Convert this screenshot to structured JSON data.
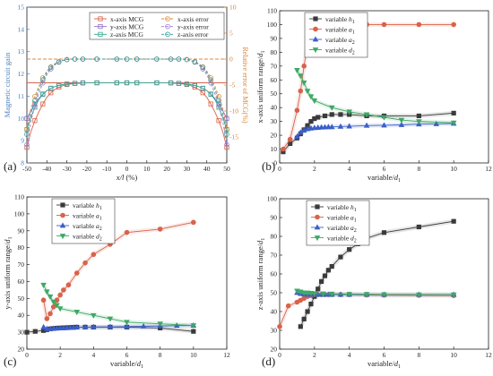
{
  "chart_data": [
    {
      "panel": "(a)",
      "type": "line",
      "xlabel": "x/l (%)",
      "ylabel": "Magnetic circuit gain",
      "y2label": "Relative error of MCG(%)",
      "xlim": [
        -50,
        50
      ],
      "ylim": [
        8,
        15
      ],
      "y2lim": [
        -20,
        10
      ],
      "xticks": [
        "-50",
        "-40",
        "-30",
        "-20",
        "-10",
        "0",
        "10",
        "20",
        "30",
        "40",
        "50"
      ],
      "yticks": [
        "8",
        "9",
        "10",
        "11",
        "12",
        "13",
        "14",
        "15"
      ],
      "y2ticks": [
        "-15",
        "-10",
        "-5",
        "0",
        "5",
        "10"
      ],
      "x": [
        -50,
        -48,
        -46,
        -44,
        -42,
        -40,
        -38,
        -36,
        -34,
        -32,
        -30,
        -28,
        -26,
        -24,
        -22,
        -20,
        -15,
        -10,
        -5,
        0,
        5,
        10,
        15,
        20,
        22,
        24,
        26,
        28,
        30,
        32,
        34,
        36,
        38,
        40,
        42,
        44,
        46,
        48,
        50
      ],
      "series": [
        {
          "name": "x-axis MCG",
          "axis": "left",
          "color": "#d9624a",
          "values": [
            8.7,
            9.4,
            9.9,
            10.3,
            10.65,
            10.95,
            11.15,
            11.3,
            11.4,
            11.47,
            11.52,
            11.55,
            11.57,
            11.58,
            11.6,
            11.6,
            11.6,
            11.6,
            11.6,
            11.6,
            11.6,
            11.6,
            11.6,
            11.6,
            11.6,
            11.58,
            11.57,
            11.55,
            11.52,
            11.47,
            11.4,
            11.3,
            11.15,
            10.95,
            10.65,
            10.3,
            9.9,
            9.4,
            8.7
          ]
        },
        {
          "name": "y-axis MCG",
          "axis": "left",
          "color": "#8d6fc7",
          "values": [
            10.0,
            10.35,
            10.65,
            10.9,
            11.1,
            11.25,
            11.35,
            11.43,
            11.48,
            11.52,
            11.55,
            11.57,
            11.58,
            11.59,
            11.6,
            11.6,
            11.6,
            11.6,
            11.6,
            11.6,
            11.6,
            11.6,
            11.6,
            11.6,
            11.6,
            11.59,
            11.58,
            11.57,
            11.55,
            11.52,
            11.48,
            11.43,
            11.35,
            11.25,
            11.1,
            10.9,
            10.65,
            10.35,
            10.0
          ]
        },
        {
          "name": "z-axis MCG",
          "axis": "left",
          "color": "#3aa88f",
          "values": [
            9.5,
            10.05,
            10.5,
            10.85,
            11.08,
            11.25,
            11.36,
            11.43,
            11.48,
            11.52,
            11.54,
            11.56,
            11.57,
            11.58,
            11.59,
            11.6,
            11.6,
            11.6,
            11.6,
            11.6,
            11.6,
            11.6,
            11.6,
            11.6,
            11.59,
            11.58,
            11.57,
            11.56,
            11.54,
            11.52,
            11.48,
            11.43,
            11.36,
            11.25,
            11.08,
            10.85,
            10.5,
            10.05,
            9.5
          ]
        },
        {
          "name": "x-axis error",
          "axis": "right",
          "color": "#e08a3a",
          "values": [
            -13.5,
            -9.5,
            -7.2,
            -5.2,
            -3.6,
            -2.3,
            -1.5,
            -0.9,
            -0.5,
            -0.25,
            -0.1,
            0,
            0,
            0,
            0,
            0,
            0,
            0,
            0,
            0,
            0,
            0,
            0,
            0,
            0,
            0,
            0,
            0,
            -0.1,
            -0.25,
            -0.5,
            -0.9,
            -1.5,
            -2.3,
            -3.6,
            -5.2,
            -7.2,
            -9.5,
            -13.5
          ]
        },
        {
          "name": "y-axis error",
          "axis": "right",
          "color": "#9b7fd0",
          "values": [
            -16.5,
            -12.0,
            -9.0,
            -6.6,
            -4.6,
            -3.0,
            -1.9,
            -1.1,
            -0.6,
            -0.3,
            -0.1,
            0,
            0,
            0,
            0,
            0,
            0,
            0,
            0,
            0,
            0,
            0,
            0,
            0,
            0,
            0,
            0,
            0,
            -0.1,
            -0.3,
            -0.6,
            -1.1,
            -1.9,
            -3.0,
            -4.6,
            -6.6,
            -9.0,
            -12.0,
            -16.5
          ]
        },
        {
          "name": "z-axis error",
          "axis": "right",
          "color": "#3a9e9a",
          "values": [
            -14.5,
            -10.5,
            -8.0,
            -5.8,
            -4.0,
            -2.6,
            -1.6,
            -1.0,
            -0.55,
            -0.25,
            -0.1,
            0,
            0,
            0,
            0,
            0,
            0,
            0,
            0,
            0,
            0,
            0,
            0,
            0,
            0,
            0,
            0,
            0,
            -0.1,
            -0.25,
            -0.55,
            -1.0,
            -1.6,
            -2.6,
            -4.0,
            -5.8,
            -8.0,
            -10.5,
            -14.5
          ]
        }
      ],
      "reference_lines": [
        {
          "axis": "left",
          "value": 11.6,
          "color": "#d9624a",
          "style": "solid"
        },
        {
          "axis": "right",
          "value": 0,
          "color": "#e08a3a",
          "style": "dashed"
        }
      ]
    },
    {
      "panel": "(b)",
      "type": "line",
      "xlabel": "variable/d1",
      "ylabel": "x-axis uniform range/d1",
      "xlim": [
        0,
        12
      ],
      "ylim": [
        0,
        110
      ],
      "xticks": [
        "0",
        "2",
        "4",
        "6",
        "8",
        "10",
        "12"
      ],
      "yticks": [
        "0",
        "10",
        "20",
        "30",
        "40",
        "50",
        "60",
        "70",
        "80",
        "90",
        "100",
        "110"
      ],
      "series": [
        {
          "name": "variable h1",
          "color": "#3a3a3a",
          "marker": "square",
          "x": [
            0.2,
            0.6,
            1.0,
            1.2,
            1.4,
            1.6,
            1.8,
            2.0,
            2.2,
            2.6,
            3.0,
            3.5,
            4.0,
            5.0,
            6.0,
            8.0,
            10.0
          ],
          "values": [
            8,
            14,
            18,
            21,
            24,
            27,
            30,
            32,
            33,
            34,
            35,
            35,
            35,
            34,
            34,
            34,
            36
          ]
        },
        {
          "name": "variable a1",
          "color": "#d9624a",
          "marker": "circle",
          "x": [
            0.2,
            0.6,
            1.0,
            1.2,
            1.4,
            1.6,
            1.8,
            2.0,
            2.4,
            3.0,
            3.5,
            4.0,
            4.5,
            5.0,
            6.0,
            8.0,
            10.0
          ],
          "values": [
            10,
            17,
            38,
            52,
            70,
            86,
            94,
            100,
            100,
            100,
            100,
            100,
            100,
            100,
            100,
            100,
            100
          ]
        },
        {
          "name": "variable a2",
          "color": "#3b5fc9",
          "marker": "triangle-up",
          "x": [
            1.0,
            1.2,
            1.4,
            1.6,
            1.8,
            2.0,
            2.2,
            2.4,
            2.6,
            2.8,
            3.0,
            3.5,
            4.0,
            5.0,
            6.0,
            7.0,
            8.0,
            9.0,
            10.0
          ],
          "values": [
            19,
            22,
            23.5,
            24.5,
            25,
            25.3,
            25.5,
            25.7,
            25.8,
            26,
            26,
            26.3,
            26.5,
            27,
            27.2,
            27.5,
            28,
            28.2,
            28.5
          ]
        },
        {
          "name": "variable d2",
          "color": "#3ea865",
          "marker": "triangle-down",
          "x": [
            1.0,
            1.2,
            1.4,
            1.6,
            1.8,
            2.0,
            3.0,
            4.0,
            5.0,
            6.0,
            7.0,
            8.0,
            10.0
          ],
          "values": [
            67,
            63,
            58,
            52,
            48,
            45,
            40,
            37,
            35,
            33,
            31,
            30,
            29
          ]
        }
      ]
    },
    {
      "panel": "(c)",
      "type": "line",
      "xlabel": "variable/d1",
      "ylabel": "y-axis uniform range/d1",
      "xlim": [
        0,
        12
      ],
      "ylim": [
        20,
        110
      ],
      "xticks": [
        "0",
        "2",
        "4",
        "6",
        "8",
        "10",
        "12"
      ],
      "yticks": [
        "20",
        "30",
        "40",
        "50",
        "60",
        "70",
        "80",
        "90",
        "100",
        "110"
      ],
      "series": [
        {
          "name": "variable h1",
          "color": "#3a3a3a",
          "marker": "square",
          "x": [
            0.0,
            0.5,
            1.0,
            1.2,
            1.4,
            1.6,
            1.8,
            2.0,
            2.2,
            2.4,
            2.6,
            2.8,
            3.0,
            3.5,
            4.0,
            5.0,
            6.0,
            8.0,
            10.0
          ],
          "values": [
            30,
            30.5,
            31,
            31.5,
            32,
            32.2,
            32.4,
            32.5,
            32.6,
            32.7,
            32.8,
            32.9,
            33,
            33,
            33,
            33,
            33,
            32.5,
            30.5
          ]
        },
        {
          "name": "variable a1",
          "color": "#d9624a",
          "marker": "circle",
          "x": [
            1.0,
            1.2,
            1.4,
            1.6,
            1.8,
            2.0,
            2.2,
            2.5,
            3.0,
            3.5,
            4.0,
            5.0,
            6.0,
            8.0,
            10.0
          ],
          "values": [
            49,
            38,
            41,
            45,
            49,
            52,
            55,
            58,
            65,
            71,
            76,
            82,
            89,
            91,
            95
          ]
        },
        {
          "name": "variable a2",
          "color": "#3b5fc9",
          "marker": "triangle-up",
          "x": [
            1.0,
            1.2,
            1.4,
            1.6,
            1.8,
            2.0,
            2.2,
            2.4,
            2.6,
            2.8,
            3.0,
            3.5,
            4.0,
            5.0,
            6.0,
            7.0,
            8.0,
            9.0,
            10.0
          ],
          "values": [
            33,
            32,
            32,
            32.2,
            32.3,
            32.4,
            32.5,
            32.6,
            32.7,
            32.8,
            32.9,
            33,
            33.1,
            33.2,
            33.3,
            33.5,
            33.7,
            33.9,
            34
          ]
        },
        {
          "name": "variable d2",
          "color": "#3ea865",
          "marker": "triangle-down",
          "x": [
            1.0,
            1.2,
            1.4,
            1.6,
            1.8,
            2.0,
            3.0,
            4.0,
            5.0,
            6.0,
            8.0,
            10.0
          ],
          "values": [
            58,
            54,
            51,
            48,
            46,
            44,
            42,
            40,
            38,
            36,
            35,
            34
          ]
        }
      ]
    },
    {
      "panel": "(d)",
      "type": "line",
      "xlabel": "variable/d1",
      "ylabel": "z-axis uniform range/d1",
      "xlim": [
        0,
        12
      ],
      "ylim": [
        20,
        100
      ],
      "xticks": [
        "0",
        "2",
        "4",
        "6",
        "8",
        "10",
        "12"
      ],
      "yticks": [
        "20",
        "30",
        "40",
        "50",
        "60",
        "70",
        "80",
        "90",
        "100"
      ],
      "series": [
        {
          "name": "variable h1",
          "color": "#3a3a3a",
          "marker": "square",
          "x": [
            1.2,
            1.4,
            1.6,
            1.8,
            2.0,
            2.2,
            2.4,
            2.6,
            2.8,
            3.0,
            3.5,
            4.0,
            4.5,
            5.0,
            6.0,
            8.0,
            10.0
          ],
          "values": [
            32,
            36,
            40,
            44,
            48,
            52,
            56,
            59,
            62,
            64,
            69,
            73,
            76,
            79,
            82,
            85,
            88
          ]
        },
        {
          "name": "variable a1",
          "color": "#d9624a",
          "marker": "circle",
          "x": [
            0.0,
            0.5,
            1.0,
            1.2,
            1.4,
            1.6,
            1.8,
            2.0,
            2.2,
            2.4,
            2.6,
            2.8,
            3.0,
            3.5,
            4.0,
            5.0,
            6.0,
            8.0,
            10.0
          ],
          "values": [
            32,
            43,
            45,
            46,
            47,
            48,
            48.5,
            49,
            49,
            49,
            49,
            49,
            49,
            49,
            49,
            48.8,
            48.7,
            48.6,
            48.5
          ]
        },
        {
          "name": "variable a2",
          "color": "#3b5fc9",
          "marker": "triangle-up",
          "x": [
            1.0,
            1.2,
            1.4,
            1.6,
            1.8,
            2.0,
            2.2,
            2.4,
            2.6,
            2.8,
            3.0,
            3.5,
            4.0,
            5.0,
            6.0,
            8.0,
            10.0
          ],
          "values": [
            50,
            49.5,
            49.2,
            49,
            49,
            49,
            49,
            49,
            49,
            49,
            49,
            49,
            49,
            49,
            49,
            49,
            49
          ]
        },
        {
          "name": "variable d2",
          "color": "#3ea865",
          "marker": "triangle-down",
          "x": [
            1.0,
            1.2,
            1.4,
            1.6,
            1.8,
            2.0,
            2.5,
            3.0,
            4.0,
            5.0,
            6.0,
            8.0,
            10.0
          ],
          "values": [
            51,
            50.5,
            50,
            50,
            49.8,
            49.6,
            49.5,
            49.4,
            49.3,
            49.2,
            49.1,
            49,
            49
          ]
        }
      ]
    }
  ]
}
